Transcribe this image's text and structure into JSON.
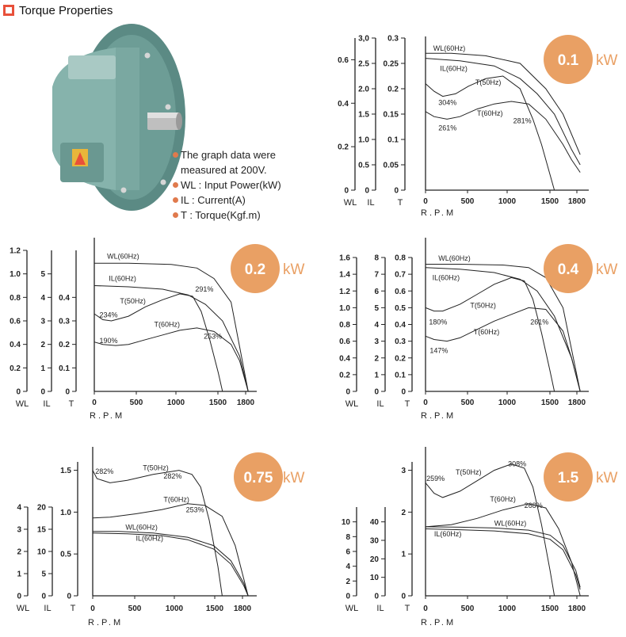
{
  "header": {
    "title": "Torque Properties",
    "accent": "#e8503a"
  },
  "notes": {
    "bullet_color": "#e07a4d",
    "lines": [
      "The graph data were",
      "measured at 200V.",
      "WL : Input Power(kW)",
      "IL : Current(A)",
      "T : Torque(Kgf.m)"
    ]
  },
  "chart_data": [
    {
      "type": "line",
      "power_value": "0.1",
      "power_unit": "kW",
      "xlabel": "R.P.M",
      "xticks": [
        "0",
        "500",
        "1000",
        "1500",
        "1800"
      ],
      "xlim": [
        0,
        1900
      ],
      "axes": [
        {
          "name": "WL",
          "ticks": [
            "0",
            "0.2",
            "0.4",
            "0.6"
          ],
          "ylim": [
            0,
            0.7
          ]
        },
        {
          "name": "IL",
          "ticks": [
            "0",
            "0.5",
            "1.0",
            "1.5",
            "2.0",
            "2.5",
            "3,0"
          ],
          "ylim": [
            0,
            3.0
          ]
        },
        {
          "name": "T",
          "ticks": [
            "0",
            "0.05",
            "0.1",
            "0.15",
            "0.2",
            "0.25",
            "0.3"
          ],
          "ylim": [
            0,
            0.3
          ]
        }
      ],
      "series": [
        {
          "name": "WL(60Hz)",
          "axis": "T",
          "x": [
            0,
            300,
            700,
            1100,
            1400,
            1600,
            1800
          ],
          "y": [
            0.27,
            0.27,
            0.265,
            0.25,
            0.2,
            0.15,
            0.07
          ]
        },
        {
          "name": "IL(60Hz)",
          "axis": "T",
          "x": [
            0,
            400,
            800,
            1100,
            1300,
            1500,
            1700,
            1800
          ],
          "y": [
            0.26,
            0.255,
            0.245,
            0.22,
            0.19,
            0.15,
            0.08,
            0.05
          ]
        },
        {
          "name": "T(50Hz)",
          "axis": "T",
          "x": [
            0,
            100,
            200,
            350,
            500,
            700,
            900,
            1100,
            1250,
            1350,
            1450,
            1500
          ],
          "y": [
            0.21,
            0.195,
            0.185,
            0.19,
            0.205,
            0.22,
            0.225,
            0.2,
            0.14,
            0.09,
            0.03,
            0
          ]
        },
        {
          "name": "T(60Hz)",
          "axis": "T",
          "x": [
            0,
            100,
            250,
            400,
            600,
            800,
            1000,
            1200,
            1400,
            1600,
            1700,
            1800
          ],
          "y": [
            0.155,
            0.145,
            0.14,
            0.145,
            0.16,
            0.17,
            0.175,
            0.17,
            0.14,
            0.09,
            0.06,
            0.035
          ]
        }
      ],
      "annotations": [
        {
          "text": "WL(60Hz)",
          "x": 90,
          "y": 0.275
        },
        {
          "text": "IL(60Hz)",
          "x": 170,
          "y": 0.235
        },
        {
          "text": "T(50Hz)",
          "x": 580,
          "y": 0.208
        },
        {
          "text": "304%",
          "x": 150,
          "y": 0.168
        },
        {
          "text": "T(60Hz)",
          "x": 600,
          "y": 0.147
        },
        {
          "text": "281%",
          "x": 1020,
          "y": 0.132
        },
        {
          "text": "261%",
          "x": 150,
          "y": 0.118
        }
      ]
    },
    {
      "type": "line",
      "power_value": "0.2",
      "power_unit": "kW",
      "xlabel": "R.P.M",
      "xticks": [
        "0",
        "500",
        "1000",
        "1500",
        "1800"
      ],
      "xlim": [
        0,
        1900
      ],
      "axes": [
        {
          "name": "WL",
          "ticks": [
            "0",
            "0.2",
            "0.4",
            "0.6",
            "0.8",
            "1.0",
            "1.2"
          ],
          "ylim": [
            0,
            1.2
          ]
        },
        {
          "name": "IL",
          "ticks": [
            "0",
            "1",
            "2",
            "3",
            "4",
            "5"
          ],
          "ylim": [
            0,
            6
          ]
        },
        {
          "name": "T",
          "ticks": [
            "0",
            "0.1",
            "0.2",
            "0.3",
            "0.4"
          ],
          "ylim": [
            0,
            0.6
          ]
        }
      ],
      "series": [
        {
          "name": "WL(60Hz)",
          "axis": "T",
          "x": [
            0,
            400,
            900,
            1200,
            1400,
            1600,
            1800
          ],
          "y": [
            0.545,
            0.545,
            0.54,
            0.525,
            0.48,
            0.38,
            0.0
          ]
        },
        {
          "name": "IL(60Hz)",
          "axis": "T",
          "x": [
            0,
            400,
            800,
            1100,
            1300,
            1500,
            1700,
            1800
          ],
          "y": [
            0.45,
            0.445,
            0.435,
            0.41,
            0.37,
            0.3,
            0.15,
            0.0
          ]
        },
        {
          "name": "T(50Hz)",
          "axis": "T",
          "x": [
            0,
            100,
            200,
            400,
            600,
            800,
            1000,
            1150,
            1250,
            1350,
            1450,
            1500
          ],
          "y": [
            0.33,
            0.305,
            0.3,
            0.32,
            0.36,
            0.39,
            0.415,
            0.405,
            0.34,
            0.22,
            0.08,
            0.0
          ]
        },
        {
          "name": "T(60Hz)",
          "axis": "T",
          "x": [
            0,
            100,
            250,
            400,
            600,
            800,
            1000,
            1200,
            1400,
            1600,
            1700,
            1800
          ],
          "y": [
            0.21,
            0.2,
            0.195,
            0.2,
            0.22,
            0.24,
            0.26,
            0.27,
            0.255,
            0.2,
            0.13,
            0.0
          ]
        }
      ],
      "annotations": [
        {
          "text": "WL(60Hz)",
          "x": 150,
          "y": 0.565
        },
        {
          "text": "IL(60Hz)",
          "x": 170,
          "y": 0.47
        },
        {
          "text": "T(50Hz)",
          "x": 300,
          "y": 0.375
        },
        {
          "text": "291%",
          "x": 1180,
          "y": 0.425
        },
        {
          "text": "234%",
          "x": 60,
          "y": 0.315
        },
        {
          "text": "T(60Hz)",
          "x": 700,
          "y": 0.275
        },
        {
          "text": "253%",
          "x": 1280,
          "y": 0.225
        },
        {
          "text": "190%",
          "x": 60,
          "y": 0.205
        }
      ]
    },
    {
      "type": "line",
      "power_value": "0.4",
      "power_unit": "kW",
      "xlabel": "R.P.M",
      "xticks": [
        "0",
        "500",
        "1000",
        "1500",
        "1800"
      ],
      "xlim": [
        0,
        1900
      ],
      "axes": [
        {
          "name": "WL",
          "ticks": [
            "0",
            "0.2",
            "0.4",
            "0.6",
            "0.8",
            "1.0",
            "1.2",
            "1.4",
            "1.6"
          ],
          "ylim": [
            0,
            1.6
          ]
        },
        {
          "name": "IL",
          "ticks": [
            "0",
            "1",
            "2",
            "3",
            "4",
            "5",
            "6",
            "7",
            "8"
          ],
          "ylim": [
            0,
            8
          ]
        },
        {
          "name": "T",
          "ticks": [
            "0",
            "0.1",
            "0.2",
            "0.3",
            "0.4",
            "0.5",
            "0.6",
            "0.7",
            "0.8"
          ],
          "ylim": [
            0,
            0.8
          ]
        }
      ],
      "series": [
        {
          "name": "WL(60Hz)",
          "axis": "T",
          "x": [
            0,
            400,
            900,
            1200,
            1400,
            1600,
            1800
          ],
          "y": [
            0.76,
            0.76,
            0.755,
            0.74,
            0.68,
            0.5,
            0.0
          ]
        },
        {
          "name": "IL(60Hz)",
          "axis": "T",
          "x": [
            0,
            400,
            800,
            1100,
            1300,
            1500,
            1700,
            1800
          ],
          "y": [
            0.74,
            0.73,
            0.71,
            0.67,
            0.6,
            0.45,
            0.2,
            0.0
          ]
        },
        {
          "name": "T(50Hz)",
          "axis": "T",
          "x": [
            0,
            100,
            200,
            400,
            600,
            800,
            1000,
            1150,
            1250,
            1350,
            1450,
            1500
          ],
          "y": [
            0.5,
            0.48,
            0.48,
            0.52,
            0.58,
            0.64,
            0.68,
            0.66,
            0.55,
            0.35,
            0.12,
            0.0
          ]
        },
        {
          "name": "T(60Hz)",
          "axis": "T",
          "x": [
            0,
            100,
            250,
            400,
            600,
            800,
            1000,
            1200,
            1400,
            1600,
            1700,
            1800
          ],
          "y": [
            0.33,
            0.31,
            0.3,
            0.32,
            0.37,
            0.42,
            0.46,
            0.5,
            0.49,
            0.36,
            0.2,
            0.0
          ]
        }
      ],
      "annotations": [
        {
          "text": "WL(60Hz)",
          "x": 150,
          "y": 0.78
        },
        {
          "text": "IL(60Hz)",
          "x": 80,
          "y": 0.665
        },
        {
          "text": "T(50Hz)",
          "x": 520,
          "y": 0.5
        },
        {
          "text": "180%",
          "x": 40,
          "y": 0.4
        },
        {
          "text": "261%",
          "x": 1220,
          "y": 0.4
        },
        {
          "text": "T(60Hz)",
          "x": 560,
          "y": 0.34
        },
        {
          "text": "147%",
          "x": 50,
          "y": 0.23
        }
      ]
    },
    {
      "type": "line",
      "power_value": "0.75",
      "power_unit": "kW",
      "xlabel": "R.P.M",
      "xticks": [
        "0",
        "500",
        "1000",
        "1500",
        "1800"
      ],
      "xlim": [
        0,
        1900
      ],
      "axes": [
        {
          "name": "WL",
          "ticks": [
            "0",
            "1",
            "2",
            "3",
            "4"
          ],
          "ylim": [
            0,
            4
          ]
        },
        {
          "name": "IL",
          "ticks": [
            "0",
            "5",
            "10",
            "15",
            "20"
          ],
          "ylim": [
            0,
            20
          ]
        },
        {
          "name": "T",
          "ticks": [
            "0",
            "0.5",
            "1.0",
            "1.5"
          ],
          "ylim": [
            0,
            1.6
          ]
        }
      ],
      "series": [
        {
          "name": "T(50Hz)",
          "axis": "T",
          "x": [
            0,
            50,
            200,
            400,
            700,
            1000,
            1150,
            1250,
            1350,
            1450,
            1500
          ],
          "y": [
            1.5,
            1.4,
            1.35,
            1.38,
            1.45,
            1.5,
            1.45,
            1.3,
            0.9,
            0.35,
            0.0
          ]
        },
        {
          "name": "T(60Hz)",
          "axis": "T",
          "x": [
            0,
            200,
            500,
            800,
            1100,
            1300,
            1500,
            1650,
            1750,
            1800
          ],
          "y": [
            0.93,
            0.94,
            0.98,
            1.03,
            1.1,
            1.08,
            0.95,
            0.6,
            0.2,
            0.0
          ]
        },
        {
          "name": "WL(60Hz)",
          "axis": "T",
          "x": [
            0,
            300,
            700,
            1100,
            1400,
            1600,
            1750,
            1800
          ],
          "y": [
            0.77,
            0.77,
            0.75,
            0.7,
            0.6,
            0.42,
            0.15,
            0.0
          ]
        },
        {
          "name": "IL(60Hz)",
          "axis": "T",
          "x": [
            0,
            400,
            800,
            1100,
            1400,
            1600,
            1750,
            1800
          ],
          "y": [
            0.75,
            0.74,
            0.72,
            0.67,
            0.56,
            0.38,
            0.12,
            0.0
          ]
        }
      ],
      "annotations": [
        {
          "text": "282%",
          "x": 30,
          "y": 1.46
        },
        {
          "text": "T(50Hz)",
          "x": 580,
          "y": 1.5
        },
        {
          "text": "282%",
          "x": 820,
          "y": 1.4
        },
        {
          "text": "T(60Hz)",
          "x": 820,
          "y": 1.12
        },
        {
          "text": "253%",
          "x": 1080,
          "y": 1.0
        },
        {
          "text": "WL(60Hz)",
          "x": 380,
          "y": 0.79
        },
        {
          "text": "IL(60Hz)",
          "x": 500,
          "y": 0.66
        }
      ]
    },
    {
      "type": "line",
      "power_value": "1.5",
      "power_unit": "kW",
      "xlabel": "R.P.M",
      "xticks": [
        "0",
        "500",
        "1000",
        "1500",
        "1800"
      ],
      "xlim": [
        0,
        1900
      ],
      "axes": [
        {
          "name": "WL",
          "ticks": [
            "0",
            "2",
            "4",
            "6",
            "8",
            "10"
          ],
          "ylim": [
            0,
            12
          ]
        },
        {
          "name": "IL",
          "ticks": [
            "0",
            "10",
            "20",
            "30",
            "40"
          ],
          "ylim": [
            0,
            48
          ]
        },
        {
          "name": "T",
          "ticks": [
            "0",
            "1",
            "2",
            "3"
          ],
          "ylim": [
            0,
            3.2
          ]
        }
      ],
      "series": [
        {
          "name": "T(50Hz)",
          "axis": "T",
          "x": [
            0,
            100,
            200,
            400,
            600,
            800,
            1000,
            1150,
            1250,
            1350,
            1450,
            1500
          ],
          "y": [
            2.7,
            2.45,
            2.35,
            2.5,
            2.75,
            3.0,
            3.15,
            3.05,
            2.6,
            1.7,
            0.6,
            0.0
          ]
        },
        {
          "name": "T(60Hz)",
          "axis": "T",
          "x": [
            0,
            300,
            600,
            900,
            1200,
            1400,
            1550,
            1700,
            1800
          ],
          "y": [
            1.65,
            1.7,
            1.85,
            2.05,
            2.2,
            2.1,
            1.6,
            0.8,
            0.0
          ]
        },
        {
          "name": "WL(60Hz)",
          "axis": "T",
          "x": [
            0,
            400,
            800,
            1200,
            1450,
            1600,
            1750,
            1800
          ],
          "y": [
            1.65,
            1.64,
            1.62,
            1.57,
            1.45,
            1.2,
            0.6,
            0.2
          ]
        },
        {
          "name": "IL(60Hz)",
          "axis": "T",
          "x": [
            0,
            400,
            800,
            1200,
            1450,
            1600,
            1750,
            1800
          ],
          "y": [
            1.6,
            1.58,
            1.55,
            1.48,
            1.35,
            1.1,
            0.5,
            0.15
          ]
        }
      ],
      "annotations": [
        {
          "text": "259%",
          "x": 10,
          "y": 2.75
        },
        {
          "text": "T(50Hz)",
          "x": 350,
          "y": 2.9
        },
        {
          "text": "308%",
          "x": 960,
          "y": 3.1
        },
        {
          "text": "T(60Hz)",
          "x": 750,
          "y": 2.25
        },
        {
          "text": "268%",
          "x": 1150,
          "y": 2.1
        },
        {
          "text": "WL(60Hz)",
          "x": 800,
          "y": 1.68
        },
        {
          "text": "IL(60Hz)",
          "x": 100,
          "y": 1.42
        }
      ]
    }
  ]
}
